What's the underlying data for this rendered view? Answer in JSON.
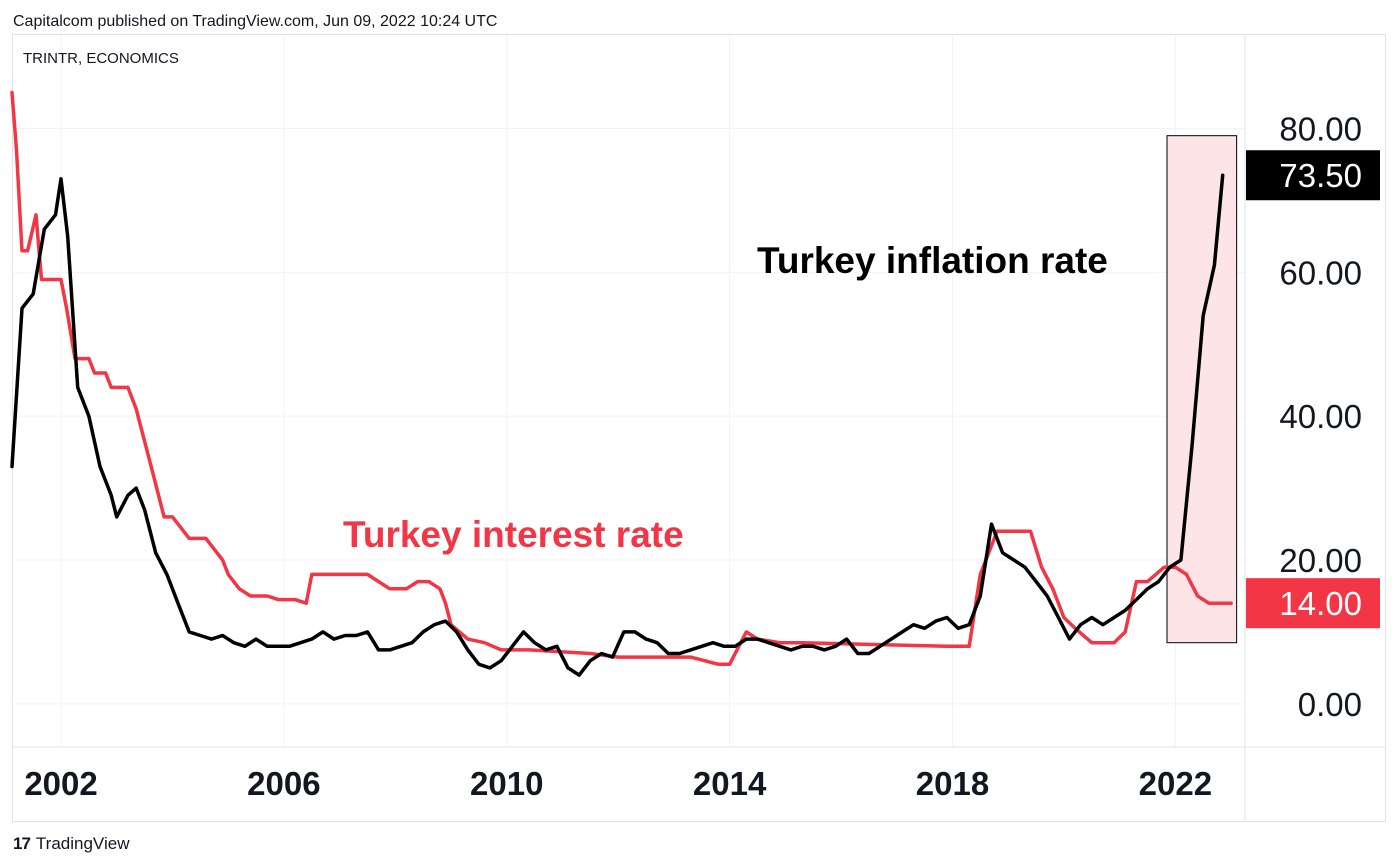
{
  "header": {
    "published": "Capitalcom published on TradingView.com, Jun 09, 2022 10:24 UTC"
  },
  "footer": {
    "logo_icon": "tradingview-logo-icon",
    "brand": "TradingView"
  },
  "chart_data": {
    "type": "line",
    "symbol": "TRINTR, ECONOMICS",
    "x_tick_labels": [
      "2002",
      "2006",
      "2010",
      "2014",
      "2018",
      "2022"
    ],
    "x_tick_years": [
      2002,
      2006,
      2010,
      2014,
      2018,
      2022
    ],
    "y_tick_labels": [
      "80.00",
      "60.00",
      "40.00",
      "20.00",
      "0.00"
    ],
    "y_ticks": [
      80,
      60,
      40,
      20,
      0
    ],
    "xlim": [
      2001.12,
      2023.25
    ],
    "ylim": [
      -6,
      93
    ],
    "grid": true,
    "highlight_box": {
      "x": [
        2021.85,
        2023.1
      ],
      "y": [
        8.5,
        79
      ],
      "fill": "#fde4e7",
      "stroke": "#000000"
    },
    "series": [
      {
        "color": "#000000",
        "last_value_label": "73.50",
        "annotation": "Turkey inflation rate",
        "x": [
          2001.12,
          2001.3,
          2001.5,
          2001.7,
          2001.9,
          2002.0,
          2002.12,
          2002.3,
          2002.5,
          2002.7,
          2002.9,
          2003.0,
          2003.2,
          2003.35,
          2003.5,
          2003.7,
          2003.9,
          2004.1,
          2004.3,
          2004.5,
          2004.7,
          2004.9,
          2005.1,
          2005.3,
          2005.5,
          2005.7,
          2005.9,
          2006.1,
          2006.3,
          2006.5,
          2006.7,
          2006.9,
          2007.1,
          2007.3,
          2007.5,
          2007.7,
          2007.9,
          2008.1,
          2008.3,
          2008.5,
          2008.7,
          2008.9,
          2009.1,
          2009.3,
          2009.5,
          2009.7,
          2009.9,
          2010.1,
          2010.3,
          2010.5,
          2010.7,
          2010.9,
          2011.1,
          2011.3,
          2011.5,
          2011.7,
          2011.9,
          2012.1,
          2012.3,
          2012.5,
          2012.7,
          2012.9,
          2013.1,
          2013.3,
          2013.5,
          2013.7,
          2013.9,
          2014.1,
          2014.3,
          2014.5,
          2014.7,
          2014.9,
          2015.1,
          2015.3,
          2015.5,
          2015.7,
          2015.9,
          2016.1,
          2016.3,
          2016.5,
          2016.7,
          2016.9,
          2017.1,
          2017.3,
          2017.5,
          2017.7,
          2017.9,
          2018.1,
          2018.3,
          2018.5,
          2018.7,
          2018.9,
          2019.1,
          2019.3,
          2019.5,
          2019.7,
          2019.9,
          2020.1,
          2020.3,
          2020.5,
          2020.7,
          2020.9,
          2021.1,
          2021.3,
          2021.5,
          2021.7,
          2021.9,
          2022.1,
          2022.3,
          2022.5,
          2022.7,
          2022.85
        ],
        "y": [
          33,
          55,
          57,
          66,
          68,
          73,
          65,
          44,
          40,
          33,
          29,
          26,
          29,
          30,
          27,
          21,
          18,
          14,
          10,
          9.5,
          9,
          9.5,
          8.5,
          8,
          9,
          8,
          8,
          8,
          8.5,
          9,
          10,
          9,
          9.5,
          9.5,
          10,
          7.5,
          7.5,
          8,
          8.5,
          10,
          11,
          11.5,
          10,
          7.5,
          5.5,
          5,
          6,
          8,
          10,
          8.5,
          7.5,
          8,
          5,
          4,
          6,
          7,
          6.5,
          10,
          10,
          9,
          8.5,
          7,
          7,
          7.5,
          8,
          8.5,
          8,
          8,
          9,
          9,
          8.5,
          8,
          7.5,
          8,
          8,
          7.5,
          8,
          9,
          7,
          7,
          8,
          9,
          10,
          11,
          10.5,
          11.5,
          12,
          10.5,
          11,
          15,
          25,
          21,
          20,
          19,
          17,
          15,
          12,
          9,
          11,
          12,
          11,
          12,
          13,
          14.5,
          16,
          17,
          19,
          20,
          36,
          54,
          61,
          73.5
        ]
      },
      {
        "color": "#f23645",
        "last_value_label": "14.00",
        "annotation": "Turkey interest rate",
        "x": [
          2001.12,
          2001.2,
          2001.3,
          2001.4,
          2001.55,
          2001.65,
          2001.8,
          2002.0,
          2002.1,
          2002.25,
          2002.5,
          2002.6,
          2002.8,
          2002.9,
          2003.2,
          2003.35,
          2003.45,
          2003.55,
          2003.65,
          2003.85,
          2004.0,
          2004.3,
          2004.6,
          2004.9,
          2005.0,
          2005.2,
          2005.4,
          2005.7,
          2005.9,
          2006.2,
          2006.4,
          2006.5,
          2006.6,
          2006.9,
          2007.5,
          2007.7,
          2007.9,
          2008.2,
          2008.4,
          2008.6,
          2008.8,
          2008.9,
          2009.0,
          2009.3,
          2009.6,
          2009.9,
          2010.4,
          2011.5,
          2012.0,
          2013.3,
          2013.8,
          2014.0,
          2014.3,
          2014.5,
          2014.9,
          2015.3,
          2017.9,
          2018.3,
          2018.5,
          2018.8,
          2019.4,
          2019.6,
          2019.8,
          2020.0,
          2020.2,
          2020.5,
          2020.9,
          2021.1,
          2021.3,
          2021.5,
          2021.8,
          2022.0,
          2022.2,
          2022.4,
          2022.6,
          2023.0
        ],
        "y": [
          85,
          77,
          63,
          63,
          68,
          59,
          59,
          59,
          55,
          48,
          48,
          46,
          46,
          44,
          44,
          41,
          38,
          35,
          32,
          26,
          26,
          23,
          23,
          20,
          18,
          16,
          15,
          15,
          14.5,
          14.5,
          14,
          18,
          18,
          18,
          18,
          17,
          16,
          16,
          17,
          17,
          16,
          14,
          11,
          9,
          8.5,
          7.5,
          7.5,
          7,
          6.5,
          6.5,
          5.5,
          5.5,
          10,
          9,
          8.5,
          8.5,
          8,
          8,
          18,
          24,
          24,
          19,
          16,
          12,
          10.5,
          8.5,
          8.5,
          10,
          17,
          17,
          19,
          19,
          18,
          15,
          14,
          14
        ]
      }
    ]
  }
}
